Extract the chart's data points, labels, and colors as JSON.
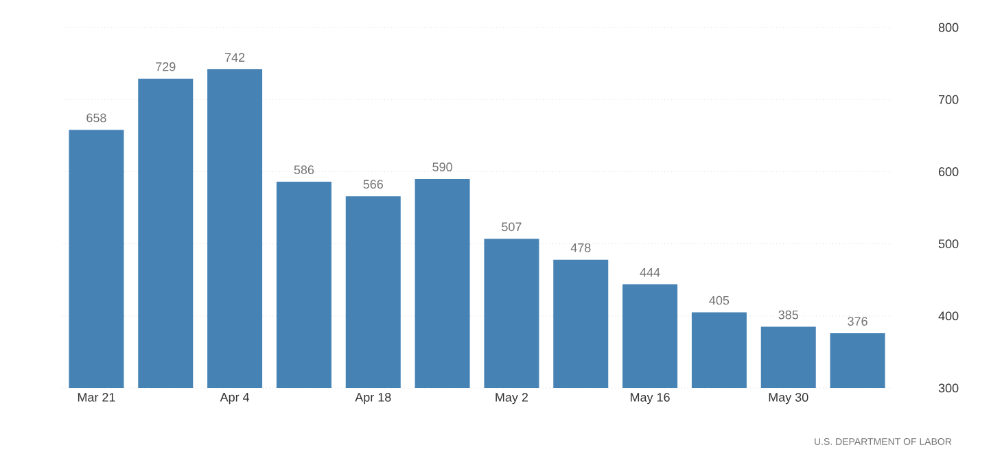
{
  "chart_data": {
    "type": "bar",
    "categories": [
      "Mar 21",
      null,
      "Apr 4",
      null,
      "Apr 18",
      null,
      "May 2",
      null,
      "May 16",
      null,
      "May 30",
      null
    ],
    "values": [
      658,
      729,
      742,
      586,
      566,
      590,
      507,
      478,
      444,
      405,
      385,
      376
    ],
    "color": "#4682b4",
    "ylim": [
      300,
      800
    ],
    "yticks": [
      300,
      400,
      500,
      600,
      700,
      800
    ],
    "grid": "y",
    "data_labels": true,
    "annotations": [
      "U.S. DEPARTMENT OF LABOR"
    ]
  }
}
